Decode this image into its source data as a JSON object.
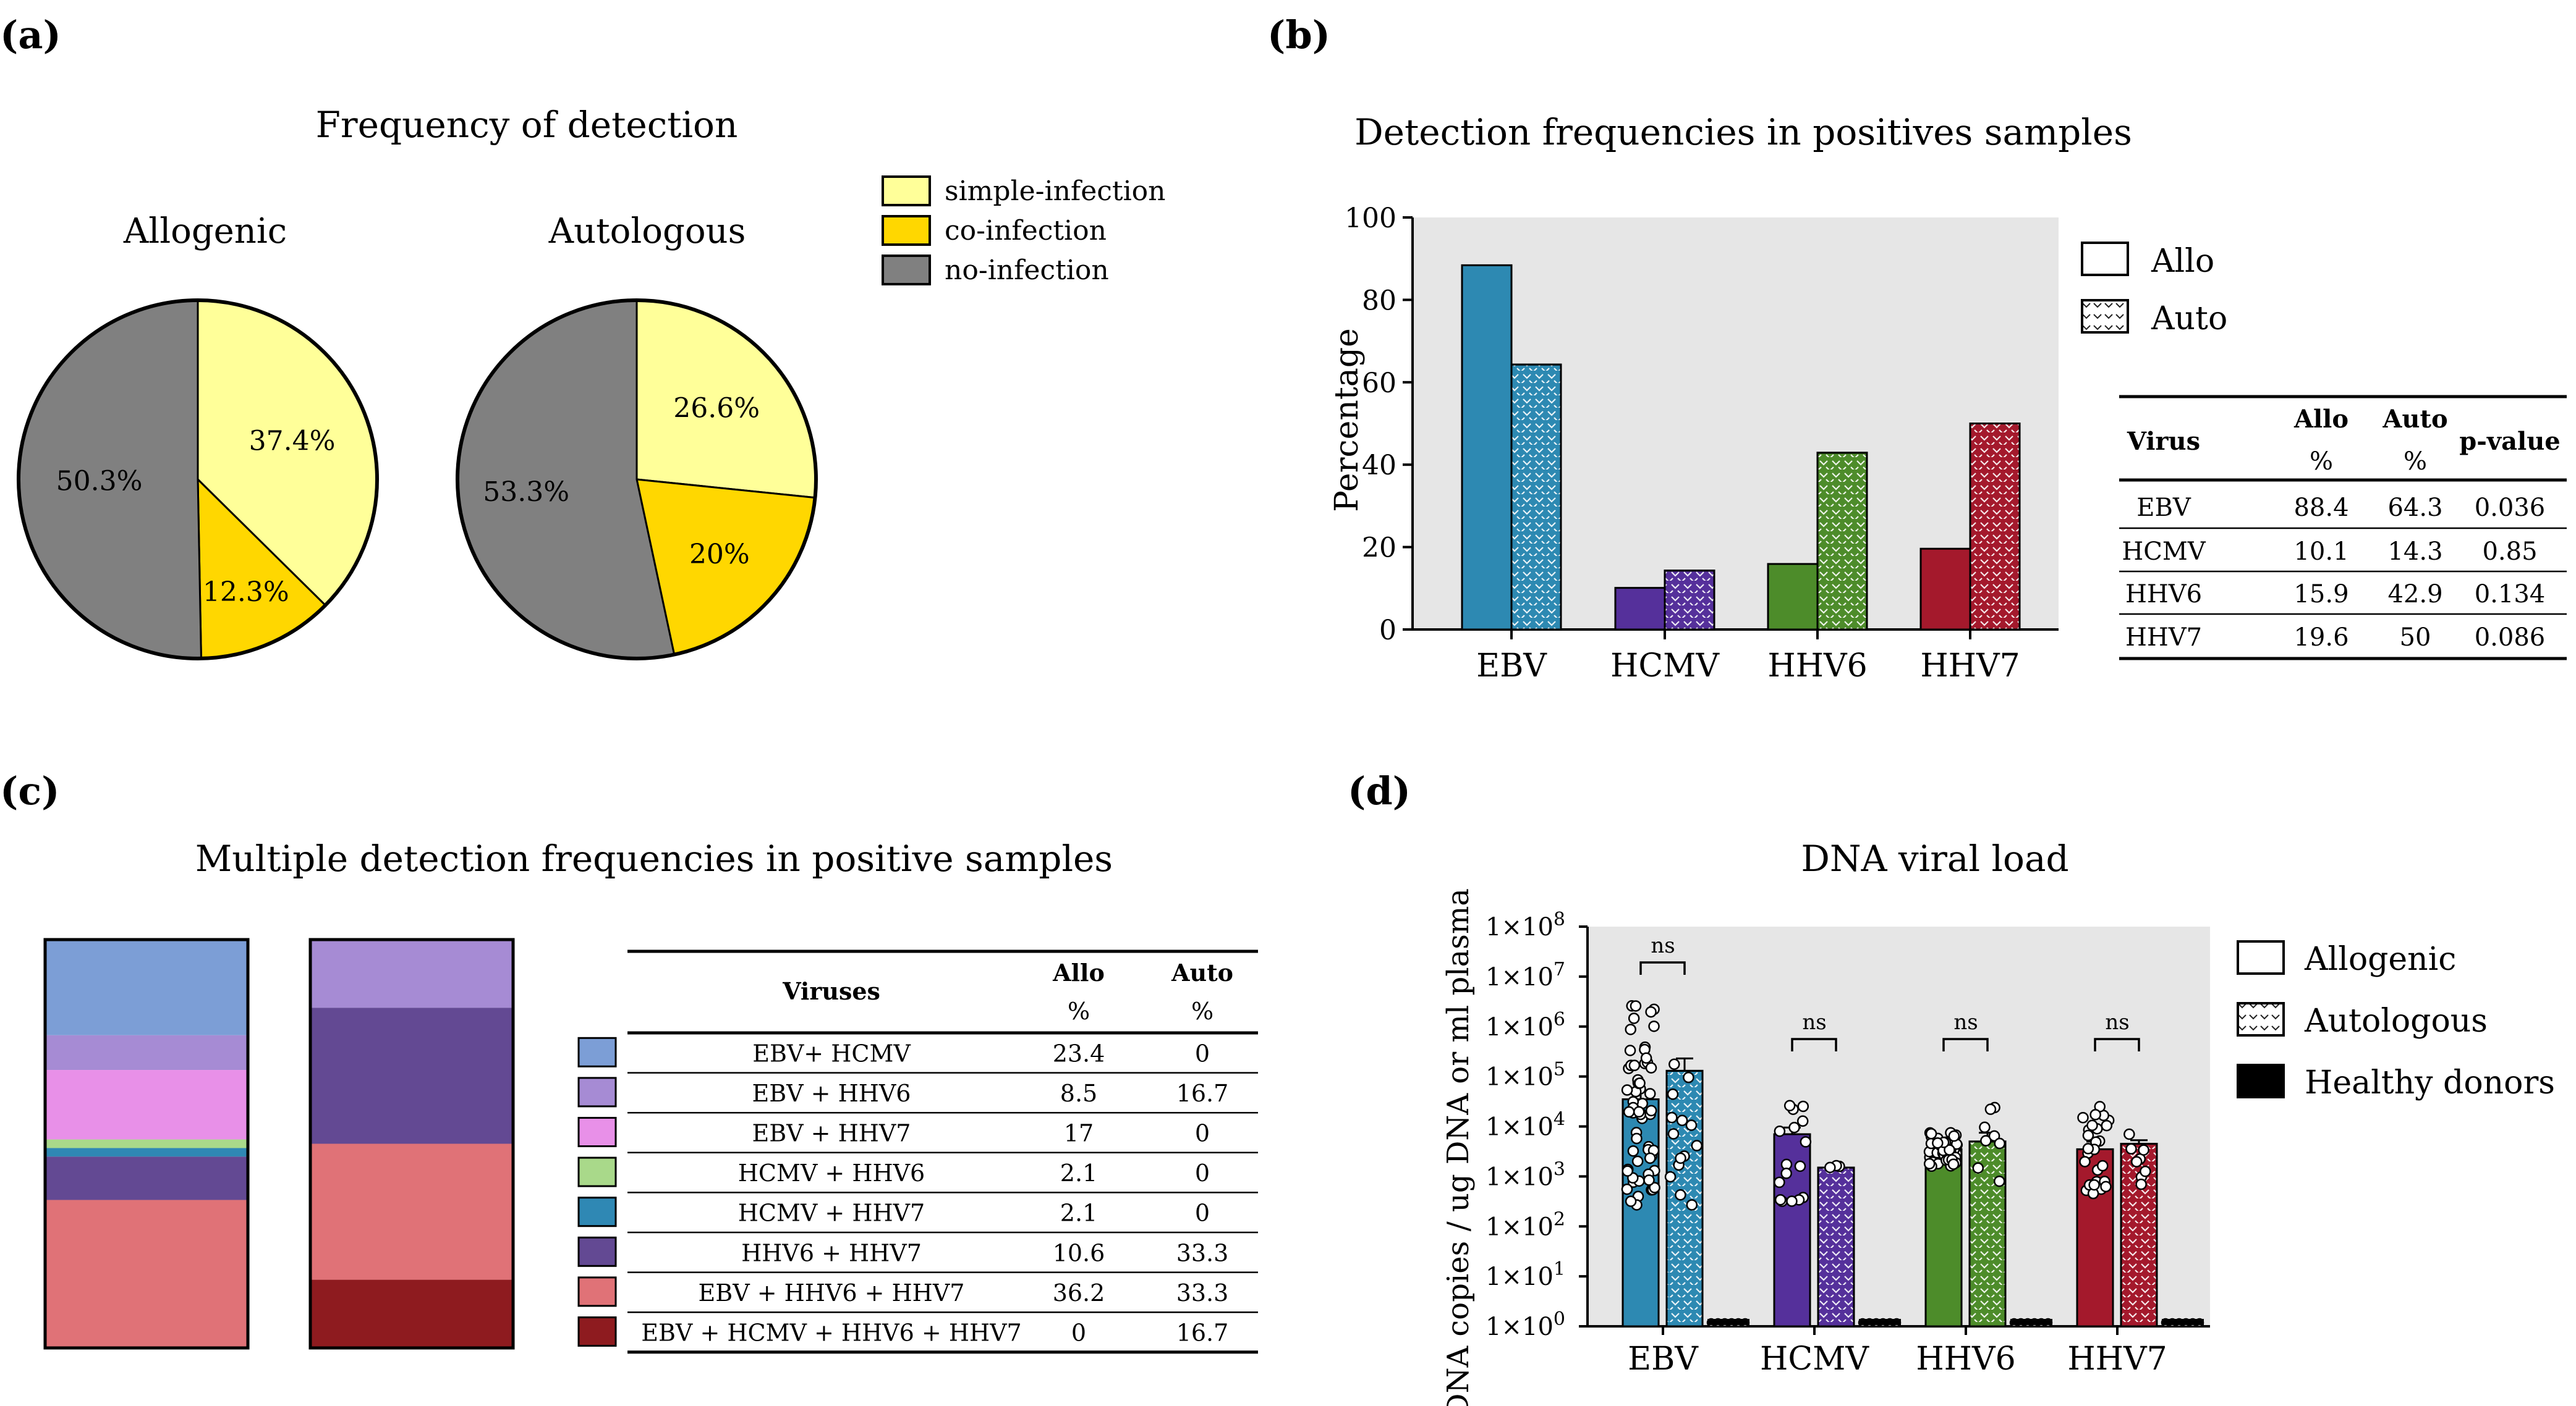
{
  "panels": {
    "a": {
      "label": "(a)",
      "title": "Frequency of detection",
      "legend": [
        {
          "label": "simple-infection",
          "color": "#FFFF99"
        },
        {
          "label": "co-infection",
          "color": "#FFD700"
        },
        {
          "label": "no-infection",
          "color": "#808080"
        }
      ]
    },
    "b": {
      "label": "(b)",
      "title": "Detection frequencies in positives samples",
      "legend": [
        {
          "label": "Allo",
          "pattern": "solid"
        },
        {
          "label": "Auto",
          "pattern": "dotted"
        }
      ],
      "table": {
        "headers": {
          "virus": "Virus",
          "allo": "Allo",
          "allo_unit": "%",
          "auto": "Auto",
          "auto_unit": "%",
          "pvalue": "p-value"
        },
        "rows": [
          {
            "virus": "EBV",
            "allo": "88.4",
            "auto": "64.3",
            "p": "0.036"
          },
          {
            "virus": "HCMV",
            "allo": "10.1",
            "auto": "14.3",
            "p": "0.85"
          },
          {
            "virus": "HHV6",
            "allo": "15.9",
            "auto": "42.9",
            "p": "0.134"
          },
          {
            "virus": "HHV7",
            "allo": "19.6",
            "auto": "50",
            "p": "0.086"
          }
        ]
      }
    },
    "c": {
      "label": "(c)",
      "title": "Multiple detection frequencies in positive samples",
      "table": {
        "headers": {
          "viruses": "Viruses",
          "allo": "Allo",
          "allo_unit": "%",
          "auto": "Auto",
          "auto_unit": "%"
        },
        "rows": [
          {
            "combo": "EBV+ HCMV",
            "allo": "23.4",
            "auto": "0",
            "color": "#7C9ED6"
          },
          {
            "combo": "EBV + HHV6",
            "allo": "8.5",
            "auto": "16.7",
            "color": "#A68BD4"
          },
          {
            "combo": "EBV + HHV7",
            "allo": "17",
            "auto": "0",
            "color": "#E890E8"
          },
          {
            "combo": "HCMV + HHV6",
            "allo": "2.1",
            "auto": "0",
            "color": "#A9D98A"
          },
          {
            "combo": "HCMV + HHV7",
            "allo": "2.1",
            "auto": "0",
            "color": "#2F88B4"
          },
          {
            "combo": "HHV6 + HHV7",
            "allo": "10.6",
            "auto": "33.3",
            "color": "#634993"
          },
          {
            "combo": "EBV + HHV6 + HHV7",
            "allo": "36.2",
            "auto": "33.3",
            "color": "#E07277"
          },
          {
            "combo": "EBV + HCMV + HHV6 + HHV7",
            "allo": "0",
            "auto": "16.7",
            "color": "#8E1B1F"
          }
        ]
      }
    },
    "d": {
      "label": "(d)",
      "title": "DNA viral load",
      "legend": [
        {
          "label": "Allogenic",
          "pattern": "solid"
        },
        {
          "label": "Autologous",
          "pattern": "dotted"
        },
        {
          "label": "Healthy donors",
          "pattern": "black"
        }
      ],
      "sig_label": "ns"
    }
  },
  "chart_data": [
    {
      "id": "pie-allogenic",
      "type": "pie",
      "title": "Allogenic",
      "slices": [
        {
          "label": "simple-infection",
          "value": 37.4,
          "text": "37.4%",
          "color": "#FFFF99"
        },
        {
          "label": "co-infection",
          "value": 12.3,
          "text": "12.3%",
          "color": "#FFD700"
        },
        {
          "label": "no-infection",
          "value": 50.3,
          "text": "50.3%",
          "color": "#808080"
        }
      ]
    },
    {
      "id": "pie-autologous",
      "type": "pie",
      "title": "Autologous",
      "slices": [
        {
          "label": "simple-infection",
          "value": 26.6,
          "text": "26.6%",
          "color": "#FFFF99"
        },
        {
          "label": "co-infection",
          "value": 20,
          "text": "20%",
          "color": "#FFD700"
        },
        {
          "label": "no-infection",
          "value": 53.3,
          "text": "53.3%",
          "color": "#808080"
        }
      ]
    },
    {
      "id": "bar-detection",
      "type": "bar",
      "title": "Detection frequencies in positives samples",
      "ylabel": "Percentage",
      "ylim": [
        0,
        100
      ],
      "yticks": [
        0,
        20,
        40,
        60,
        80,
        100
      ],
      "categories": [
        "EBV",
        "HCMV",
        "HHV6",
        "HHV7"
      ],
      "colors": [
        "#2D89B2",
        "#55309B",
        "#4D8C2A",
        "#A4192C"
      ],
      "series": [
        {
          "name": "Allo",
          "values": [
            88.4,
            10.1,
            15.9,
            19.6
          ]
        },
        {
          "name": "Auto",
          "values": [
            64.3,
            14.3,
            42.9,
            50
          ]
        }
      ]
    },
    {
      "id": "stacked-multiple",
      "type": "bar",
      "stacked": true,
      "title": "Multiple detection frequencies in positive samples",
      "categories": [
        "EBV+ HCMV",
        "EBV + HHV6",
        "EBV + HHV7",
        "HCMV + HHV6",
        "HCMV + HHV7",
        "HHV6 + HHV7",
        "EBV + HHV6 + HHV7",
        "EBV + HCMV + HHV6 + HHV7"
      ],
      "series": [
        {
          "name": "Allo",
          "values": [
            23.4,
            8.5,
            17,
            2.1,
            2.1,
            10.6,
            36.2,
            0
          ]
        },
        {
          "name": "Auto",
          "values": [
            0,
            16.7,
            0,
            0,
            0,
            33.3,
            33.3,
            16.7
          ]
        }
      ]
    },
    {
      "id": "bar-viral-load",
      "type": "bar",
      "scale": "log",
      "title": "DNA viral load",
      "ylabel": "DNA copies / ug DNA or ml plasma",
      "ylim": [
        1,
        100000000
      ],
      "ytick_exponents": [
        0,
        1,
        2,
        3,
        4,
        5,
        6,
        7,
        8
      ],
      "ytick_base": "1×10",
      "categories": [
        "EBV",
        "HCMV",
        "HHV6",
        "HHV7"
      ],
      "colors": [
        "#2D89B2",
        "#55309B",
        "#4D8C2A",
        "#A4192C"
      ],
      "series": [
        {
          "name": "Allogenic",
          "values": [
            35000,
            7000,
            3500,
            3500
          ],
          "errors": [
            15000,
            2500,
            600,
            1500
          ]
        },
        {
          "name": "Autologous",
          "values": [
            130000,
            1500,
            5000,
            4500
          ],
          "errors": [
            100000,
            150,
            2500,
            800
          ]
        },
        {
          "name": "Healthy donors",
          "values": [
            1,
            1,
            1,
            1
          ]
        }
      ],
      "annotations": [
        "ns",
        "ns",
        "ns",
        "ns"
      ]
    }
  ]
}
